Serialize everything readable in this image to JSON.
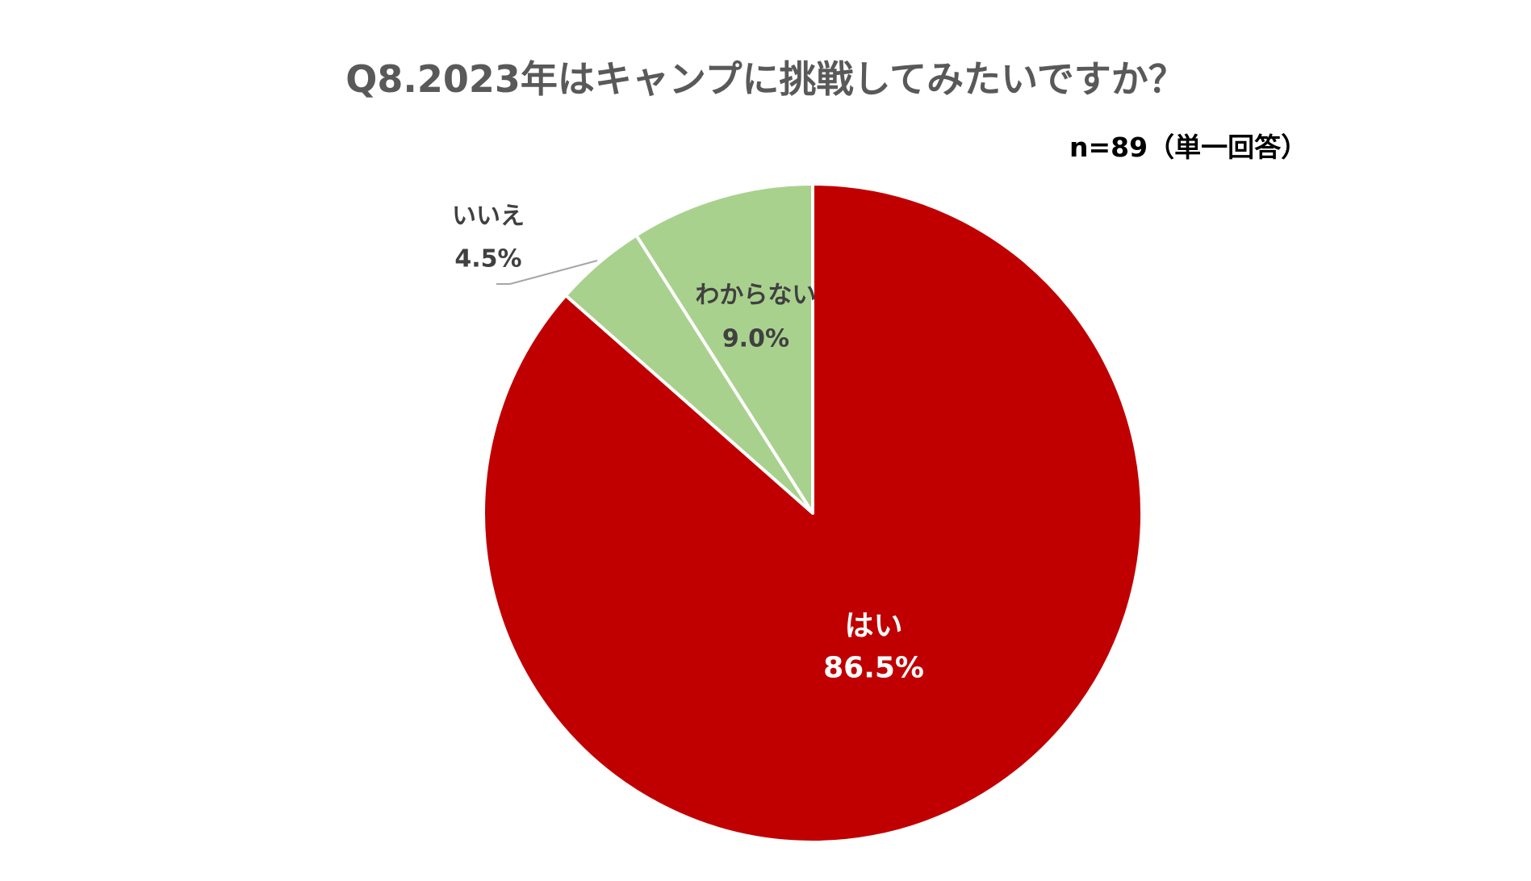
{
  "chart_data": {
    "type": "pie",
    "title": "Q8.2023年はキャンプに挑戦してみたいですか？",
    "subtitle": "n=89（単一回答）",
    "slices": [
      {
        "label": "はい",
        "value": 86.5,
        "value_label": "86.5%",
        "color": "#C00000",
        "label_color": "#FFFFFF"
      },
      {
        "label": "いいえ",
        "value": 4.5,
        "value_label": "4.5%",
        "color": "#A9D18E",
        "label_color": "#404040"
      },
      {
        "label": "わからない",
        "value": 9.0,
        "value_label": "9.0%",
        "color": "#A9D18E",
        "label_color": "#404040"
      }
    ],
    "start_angle": "12 o'clock",
    "direction": "clockwise",
    "legend": "none"
  }
}
